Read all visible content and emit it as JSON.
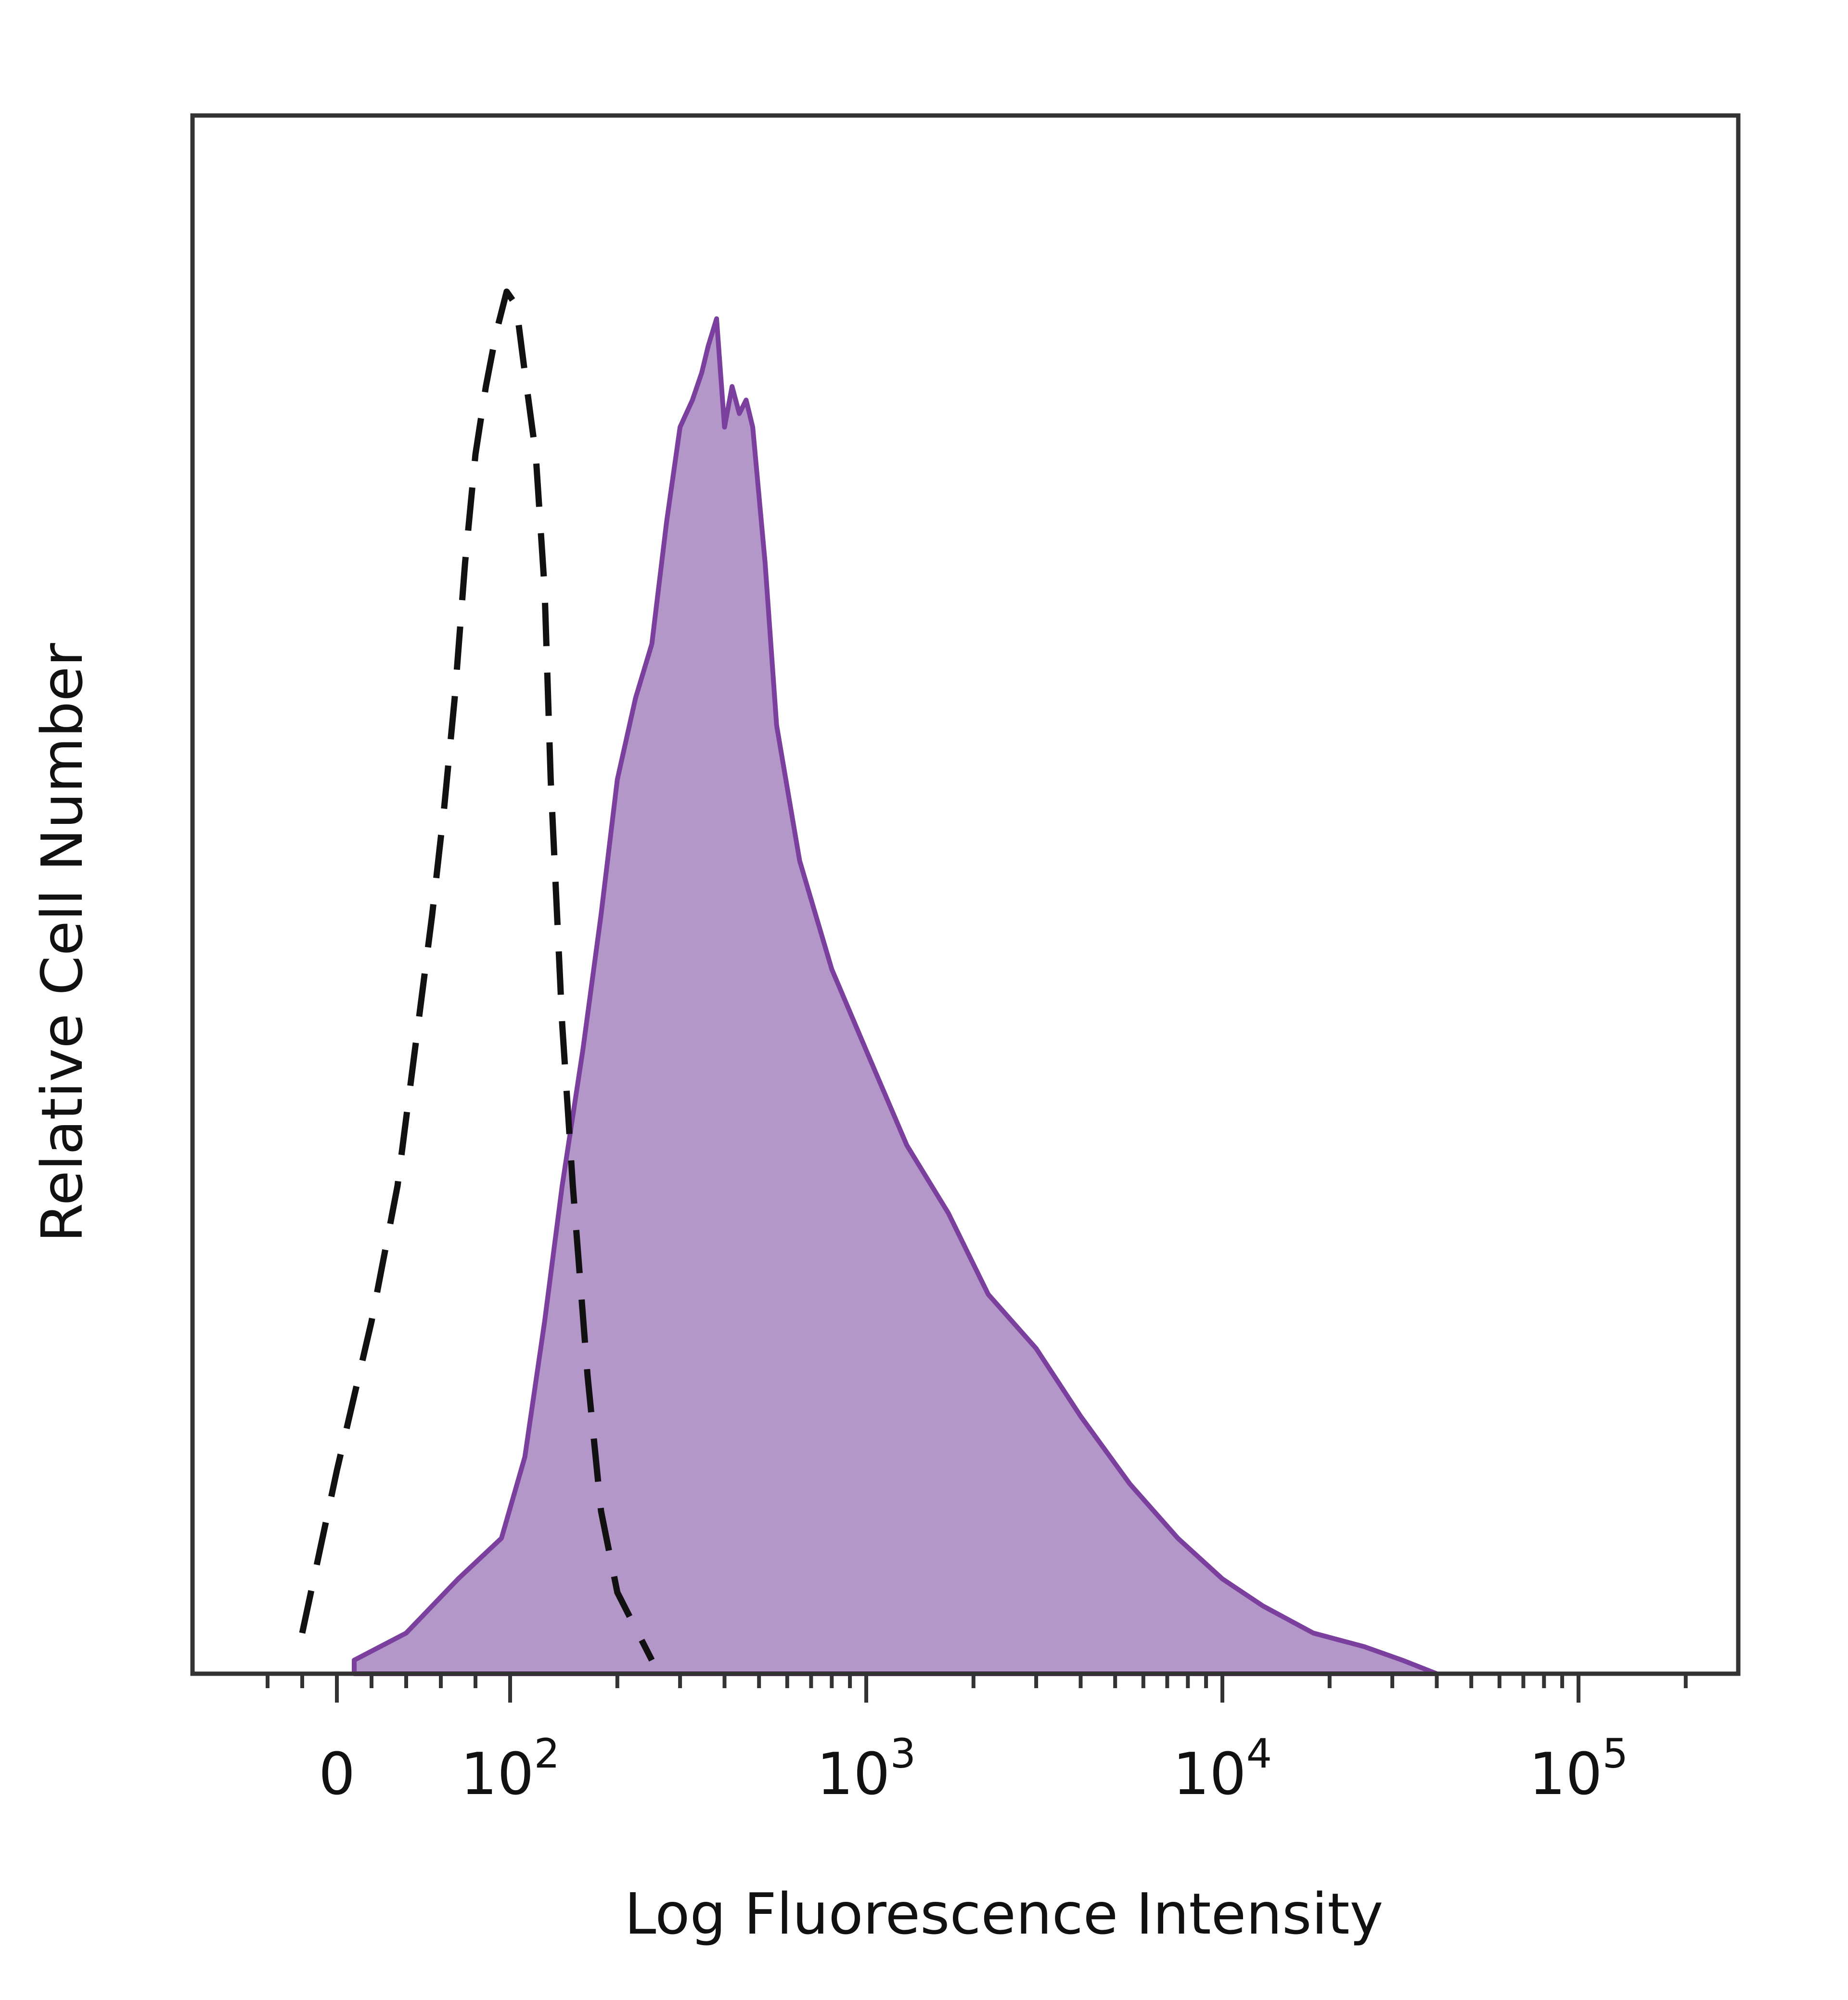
{
  "chart_data": {
    "type": "area",
    "title": "",
    "xlabel": "Log Fluorescence Intensity",
    "ylabel": "Relative Cell Number",
    "x_scale": "biexponential (log above 10^2)",
    "xlim": [
      -60,
      200000
    ],
    "ylim": [
      0,
      1.15
    ],
    "grid": false,
    "legend": "none",
    "x_ticks": [
      {
        "value": 0,
        "base": "0",
        "exp": ""
      },
      {
        "value": 100,
        "base": "10",
        "exp": "2"
      },
      {
        "value": 1000,
        "base": "10",
        "exp": "3"
      },
      {
        "value": 10000,
        "base": "10",
        "exp": "4"
      },
      {
        "value": 100000,
        "base": "10",
        "exp": "5"
      }
    ],
    "series": [
      {
        "style": "dashed-outline",
        "color": "#111111",
        "x": [
          -20,
          0,
          20,
          35,
          45,
          55,
          62,
          68,
          74,
          80,
          86,
          92,
          98,
          104,
          110,
          118,
          125,
          130,
          140,
          150,
          165,
          180,
          200,
          250
        ],
        "y": [
          0.03,
          0.15,
          0.26,
          0.36,
          0.46,
          0.56,
          0.64,
          0.72,
          0.82,
          0.9,
          0.95,
          0.99,
          1.02,
          1.01,
          0.96,
          0.9,
          0.8,
          0.66,
          0.48,
          0.36,
          0.22,
          0.12,
          0.06,
          0.01
        ]
      },
      {
        "style": "filled",
        "color": "#7b3f9e",
        "fill": "#b497c9",
        "x": [
          10,
          40,
          70,
          95,
          110,
          125,
          140,
          160,
          180,
          200,
          225,
          250,
          275,
          300,
          325,
          345,
          360,
          380,
          400,
          420,
          440,
          460,
          480,
          520,
          560,
          650,
          800,
          1000,
          1300,
          1700,
          2200,
          3000,
          4000,
          5500,
          7500,
          10000,
          13000,
          18000,
          25000,
          32000,
          40000
        ],
        "y": [
          0.01,
          0.03,
          0.07,
          0.1,
          0.16,
          0.26,
          0.36,
          0.46,
          0.56,
          0.66,
          0.72,
          0.76,
          0.85,
          0.92,
          0.94,
          0.96,
          0.98,
          1.0,
          0.92,
          0.95,
          0.93,
          0.94,
          0.92,
          0.82,
          0.7,
          0.6,
          0.52,
          0.46,
          0.39,
          0.34,
          0.28,
          0.24,
          0.19,
          0.14,
          0.1,
          0.07,
          0.05,
          0.03,
          0.02,
          0.01,
          0.0
        ]
      }
    ]
  }
}
